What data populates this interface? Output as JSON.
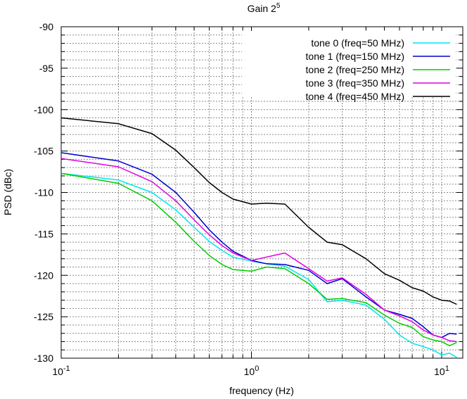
{
  "chart_data": {
    "type": "line",
    "title": "Gain 2",
    "title_superscript": "5",
    "xlabel": "frequency (Hz)",
    "ylabel": "PSD (dBc)",
    "x_scale": "log",
    "xlim": [
      0.1,
      13
    ],
    "ylim": [
      -130,
      -90
    ],
    "y_ticks": [
      -130,
      -125,
      -120,
      -115,
      -110,
      -105,
      -100,
      -95,
      -90
    ],
    "y_tick_labels": [
      "-130",
      "-125",
      "-120",
      "-115",
      "-110",
      "-105",
      "-100",
      "-95",
      "-90"
    ],
    "x_ticks": [
      {
        "value": 0.1,
        "base": "10",
        "exp": "-1"
      },
      {
        "value": 1,
        "base": "10",
        "exp": "0"
      },
      {
        "value": 10,
        "base": "10",
        "exp": "1"
      }
    ],
    "grid": true,
    "legend_position": "top-right",
    "series": [
      {
        "name": "tone 0 (freq=50 MHz)",
        "color": "#00e5ee",
        "x": [
          0.1,
          0.2,
          0.3,
          0.4,
          0.5,
          0.6,
          0.7,
          0.8,
          1.0,
          1.2,
          1.5,
          2.0,
          2.5,
          3.0,
          4.0,
          5.0,
          6.0,
          7.0,
          8.0,
          9.0,
          10.0,
          11.0,
          12.0
        ],
        "y": [
          -107.7,
          -108.5,
          -110.0,
          -112.1,
          -114.2,
          -115.9,
          -117.0,
          -117.8,
          -118.3,
          -118.6,
          -118.9,
          -120.5,
          -123.2,
          -123.0,
          -123.6,
          -125.3,
          -127.2,
          -128.2,
          -128.6,
          -129.0,
          -129.6,
          -129.4,
          -129.9
        ]
      },
      {
        "name": "tone 1 (freq=150 MHz)",
        "color": "#0000cd",
        "x": [
          0.1,
          0.2,
          0.3,
          0.4,
          0.5,
          0.6,
          0.7,
          0.8,
          1.0,
          1.2,
          1.5,
          2.0,
          2.5,
          3.0,
          4.0,
          5.0,
          6.0,
          7.0,
          8.0,
          9.0,
          10.0,
          11.0,
          12.0
        ],
        "y": [
          -105.2,
          -106.2,
          -107.8,
          -110.0,
          -112.4,
          -114.5,
          -116.0,
          -117.1,
          -118.2,
          -118.6,
          -118.7,
          -119.4,
          -121.0,
          -120.4,
          -122.6,
          -124.2,
          -124.7,
          -125.2,
          -126.2,
          -127.2,
          -127.5,
          -127.0,
          -127.1
        ]
      },
      {
        "name": "tone 2 (freq=250 MHz)",
        "color": "#00cd00",
        "x": [
          0.1,
          0.2,
          0.3,
          0.4,
          0.5,
          0.6,
          0.7,
          0.8,
          1.0,
          1.2,
          1.5,
          2.0,
          2.5,
          3.0,
          4.0,
          5.0,
          6.0,
          7.0,
          8.0,
          9.0,
          10.0,
          11.0,
          12.0
        ],
        "y": [
          -107.7,
          -108.9,
          -111.0,
          -113.6,
          -115.9,
          -117.6,
          -118.7,
          -119.3,
          -119.5,
          -119.0,
          -119.2,
          -121.0,
          -122.9,
          -122.8,
          -123.3,
          -124.8,
          -125.8,
          -126.3,
          -127.4,
          -127.8,
          -128.0,
          -128.5,
          -128.1
        ]
      },
      {
        "name": "tone 3 (freq=350 MHz)",
        "color": "#e000e0",
        "x": [
          0.1,
          0.2,
          0.3,
          0.4,
          0.5,
          0.6,
          0.7,
          0.8,
          1.0,
          1.2,
          1.5,
          2.0,
          2.5,
          3.0,
          4.0,
          5.0,
          6.0,
          7.0,
          8.0,
          9.0,
          10.0,
          11.0,
          12.0
        ],
        "y": [
          -105.9,
          -106.9,
          -108.7,
          -111.0,
          -113.3,
          -115.1,
          -116.4,
          -117.3,
          -118.2,
          -117.8,
          -117.3,
          -119.2,
          -120.7,
          -120.3,
          -122.3,
          -124.2,
          -124.9,
          -125.6,
          -126.6,
          -127.2,
          -127.5,
          -127.9,
          -128.0
        ]
      },
      {
        "name": "tone 4 (freq=450 MHz)",
        "color": "#000000",
        "x": [
          0.1,
          0.2,
          0.3,
          0.4,
          0.5,
          0.6,
          0.7,
          0.8,
          1.0,
          1.2,
          1.5,
          2.0,
          2.5,
          3.0,
          4.0,
          5.0,
          6.0,
          7.0,
          8.0,
          9.0,
          10.0,
          11.0,
          12.0
        ],
        "y": [
          -101.0,
          -101.7,
          -102.9,
          -104.9,
          -107.0,
          -108.8,
          -110.0,
          -110.8,
          -111.4,
          -111.3,
          -111.4,
          -114.2,
          -116.0,
          -116.3,
          -118.0,
          -119.8,
          -120.6,
          -121.5,
          -121.9,
          -122.6,
          -123.0,
          -123.1,
          -123.5
        ]
      }
    ]
  }
}
